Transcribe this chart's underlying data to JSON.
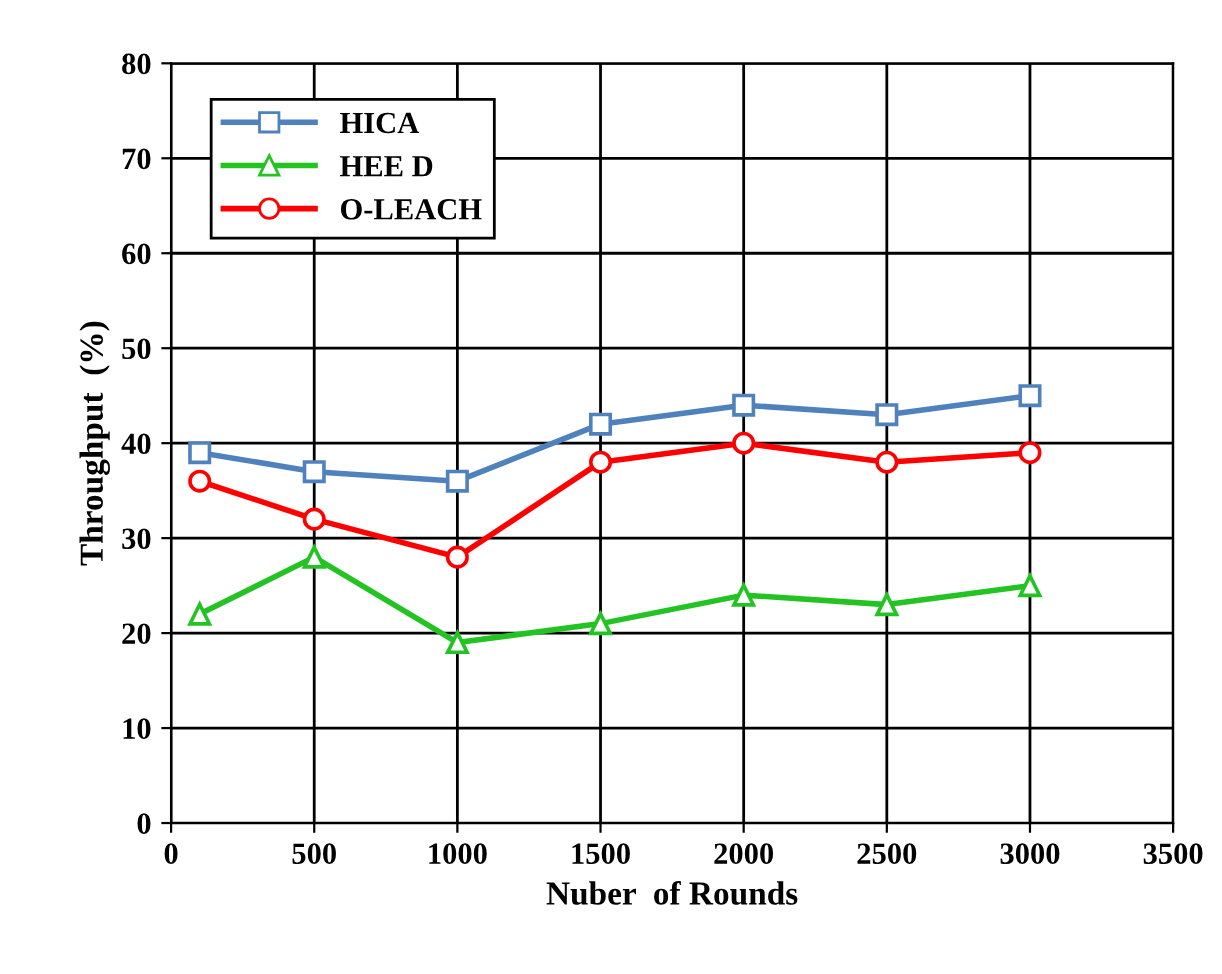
{
  "chart_data": {
    "type": "line",
    "xlabel": "Nuber  of Rounds",
    "ylabel": "Throughput  (%)",
    "x": [
      100,
      500,
      1000,
      1500,
      2000,
      2500,
      3000
    ],
    "series": [
      {
        "name": "HICA",
        "color": "#4f81bd",
        "marker": "square",
        "values": [
          39,
          37,
          36,
          42,
          44,
          43,
          45
        ]
      },
      {
        "name": "HEE D",
        "color": "#22c322",
        "marker": "triangle",
        "values": [
          22,
          28,
          19,
          21,
          24,
          23,
          25
        ]
      },
      {
        "name": "O-LEACH",
        "color": "#ff0000",
        "marker": "circle",
        "values": [
          36,
          32,
          28,
          38,
          40,
          38,
          39
        ]
      }
    ],
    "xlim": [
      0,
      3500
    ],
    "xticks": [
      0,
      500,
      1000,
      1500,
      2000,
      2500,
      3000,
      3500
    ],
    "ylim": [
      0,
      80
    ],
    "yticks": [
      0,
      10,
      20,
      30,
      40,
      50,
      60,
      70,
      80
    ],
    "grid": true,
    "legend": "top left",
    "line_style": "solid"
  }
}
